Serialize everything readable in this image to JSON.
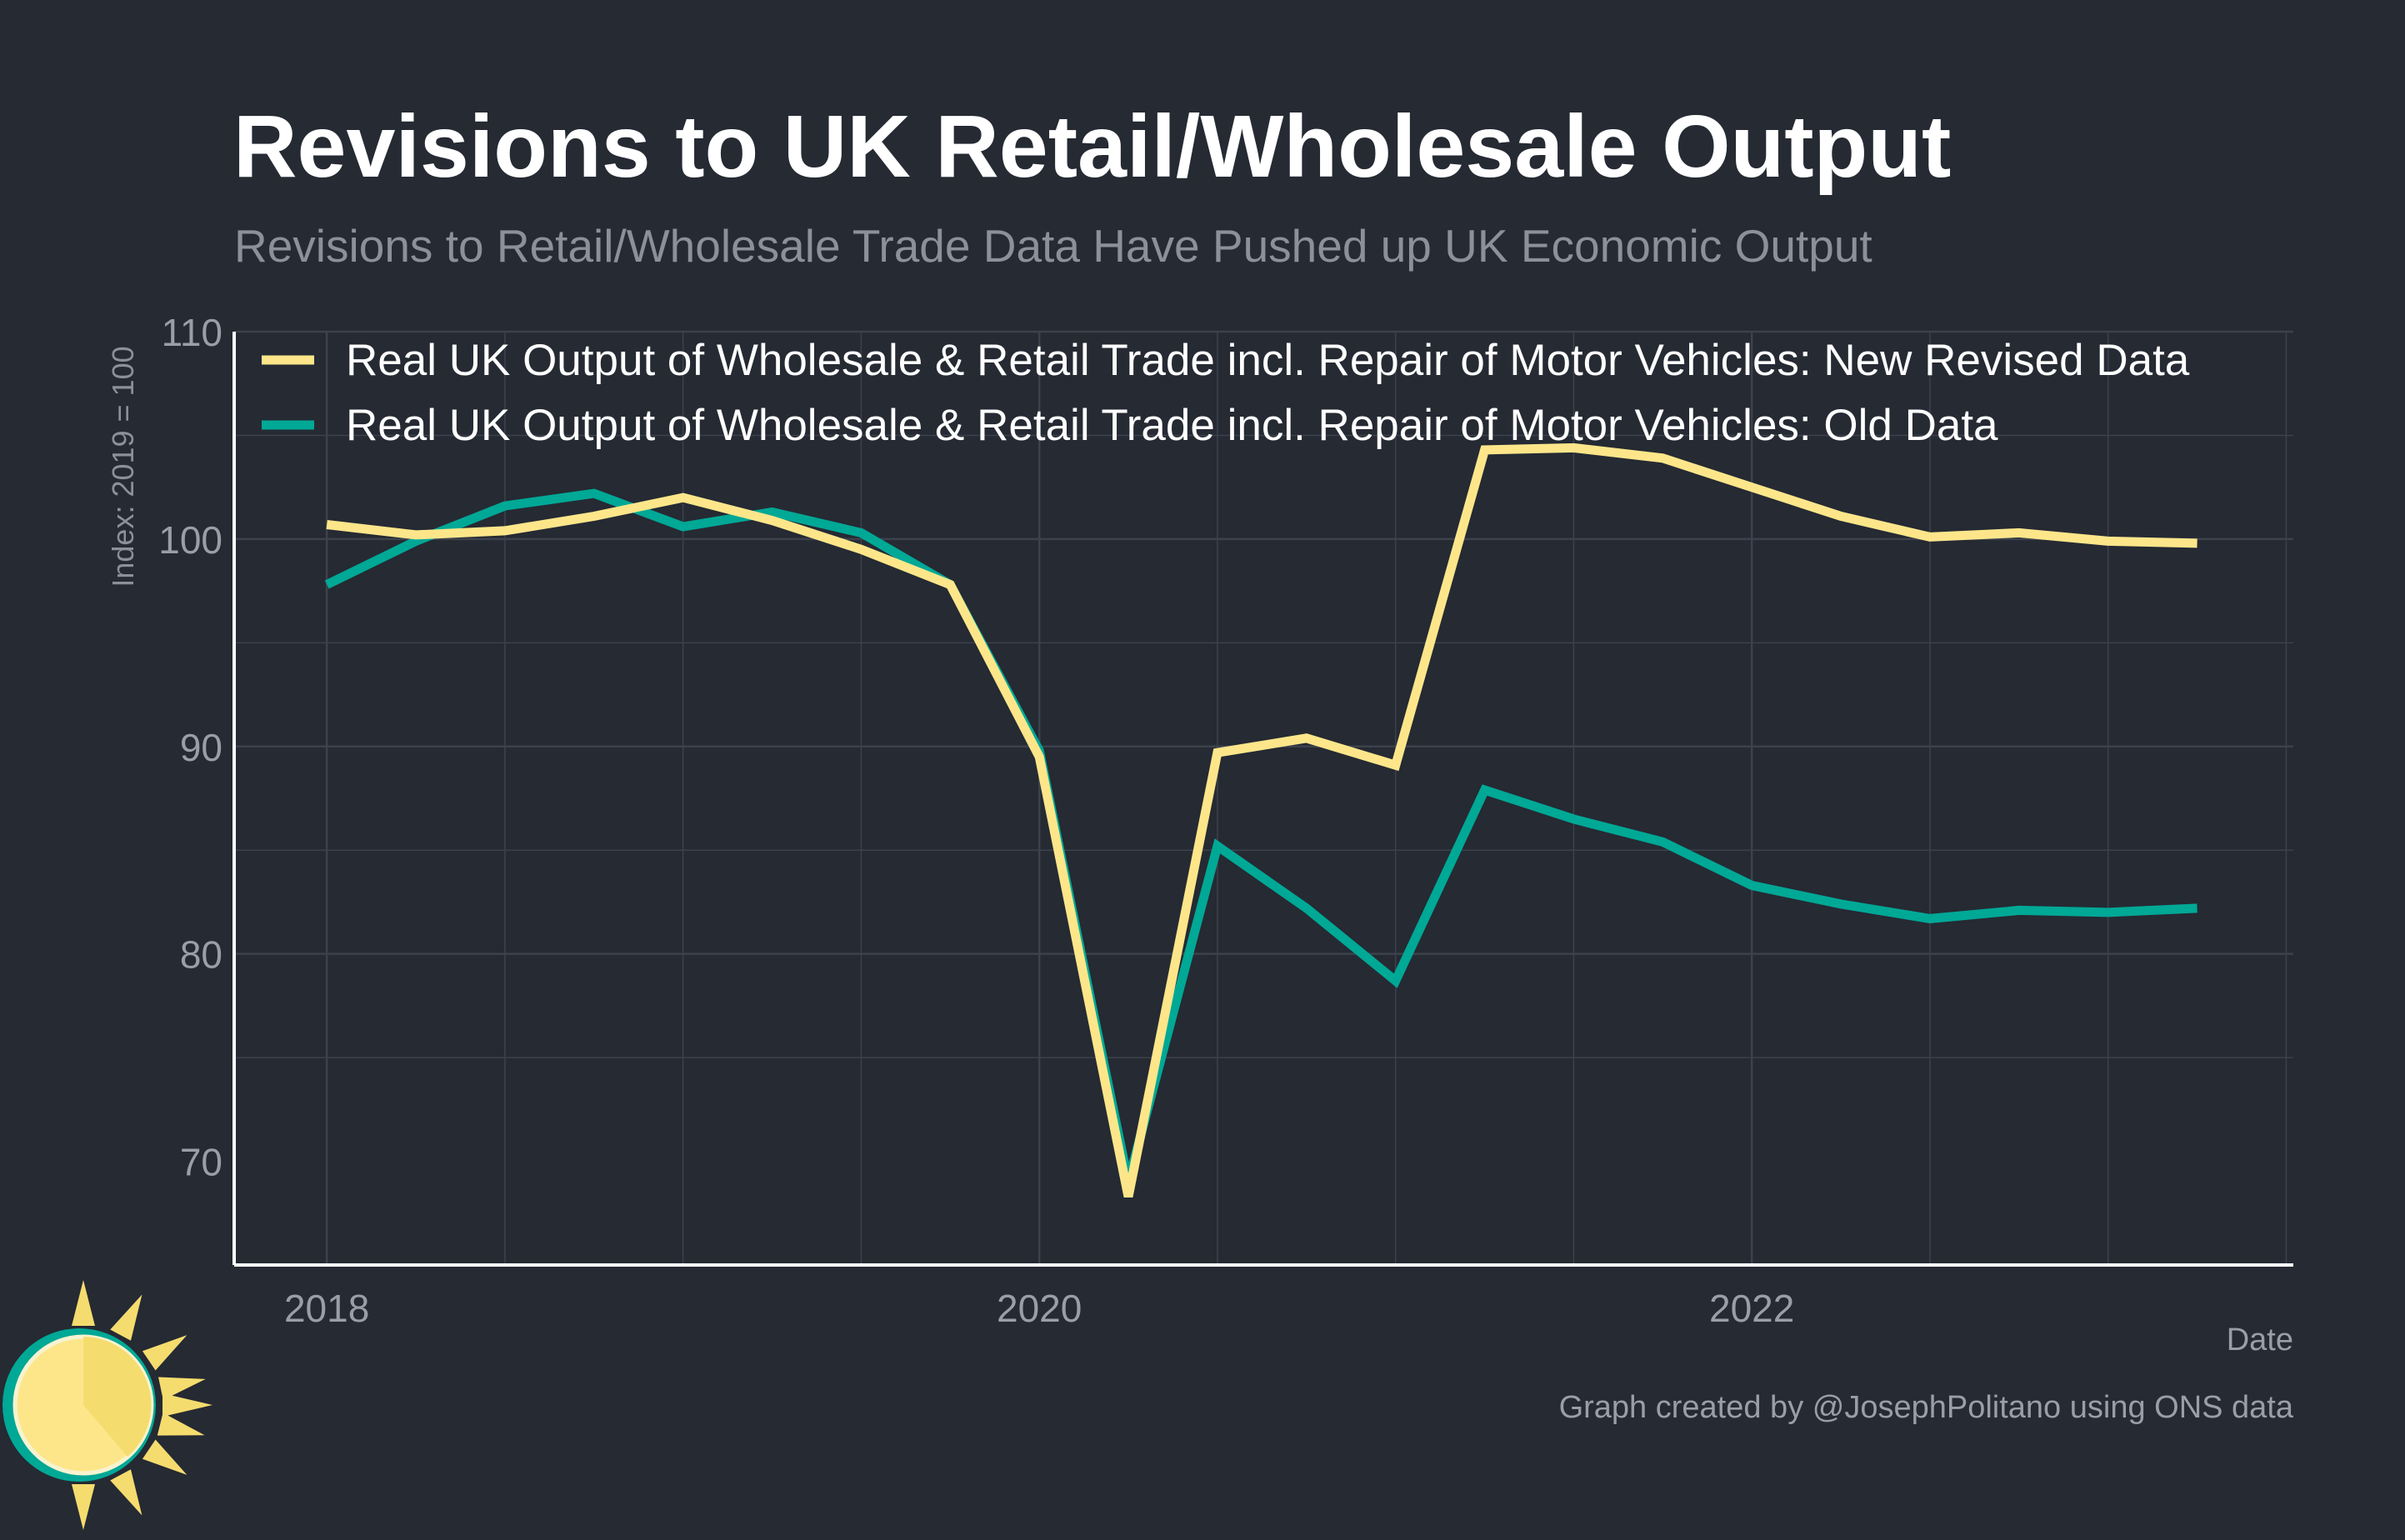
{
  "colors": {
    "background": "#252a33",
    "grid": "#3c424c",
    "axis": "#ffffff",
    "title": "#ffffff",
    "subtitle": "#8c9099",
    "tick": "#9a9ea6",
    "new_series": "#fde68a",
    "old_series": "#00a896",
    "logo_ring": "#00a896",
    "logo_sun": "#f5dc6e"
  },
  "chart_data": {
    "type": "line",
    "title": "Revisions to UK Retail/Wholesale Output",
    "subtitle": "Revisions to Retail/Wholesale Trade Data Have Pushed up UK Economic Output",
    "xlabel": "Date",
    "ylabel": "Index: 2019 = 100",
    "caption": "Graph created by @JosephPolitano using ONS data",
    "xlim": [
      2017.74,
      2023.52
    ],
    "ylim": [
      65,
      110
    ],
    "x_ticks": [
      2018,
      2020,
      2022
    ],
    "x_tick_labels": [
      "2018",
      "2020",
      "2022"
    ],
    "y_ticks": [
      70,
      80,
      90,
      100,
      110
    ],
    "y_tick_labels": [
      "70",
      "80",
      "90",
      "100",
      "110"
    ],
    "grid": true,
    "legend_position": "top-left",
    "x": [
      2018.0,
      2018.25,
      2018.5,
      2018.75,
      2019.0,
      2019.25,
      2019.5,
      2019.75,
      2020.0,
      2020.25,
      2020.5,
      2020.75,
      2021.0,
      2021.25,
      2021.5,
      2021.75,
      2022.0,
      2022.25,
      2022.5,
      2022.75,
      2023.0,
      2023.25
    ],
    "series": [
      {
        "name": "Real UK Output of Wholesale & Retail Trade incl. Repair of Motor Vehicles: New Revised Data",
        "color": "#fde68a",
        "values": [
          100.7,
          100.2,
          100.4,
          101.1,
          102.0,
          100.9,
          99.5,
          97.8,
          89.5,
          68.3,
          89.7,
          90.4,
          89.1,
          104.3,
          104.4,
          103.9,
          102.5,
          101.1,
          100.1,
          100.3,
          99.9,
          99.8
        ]
      },
      {
        "name": "Real UK Output of Wholesale & Retail Trade incl. Repair of Motor Vehicles: Old Data",
        "color": "#00a896",
        "values": [
          97.8,
          99.9,
          101.6,
          102.2,
          100.6,
          101.3,
          100.3,
          97.8,
          89.8,
          69.0,
          85.2,
          82.2,
          78.7,
          87.9,
          86.5,
          85.4,
          83.3,
          82.4,
          81.7,
          82.1,
          82.0,
          82.2
        ]
      }
    ]
  }
}
